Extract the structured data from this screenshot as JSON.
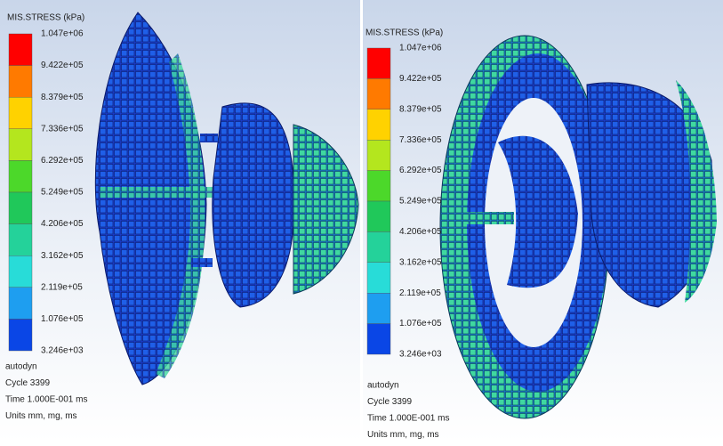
{
  "panels": [
    {
      "legend": {
        "title": "MIS.STRESS (kPa)",
        "labels": [
          "1.047e+06",
          "9.422e+05",
          "8.379e+05",
          "7.336e+05",
          "6.292e+05",
          "5.249e+05",
          "4.206e+05",
          "3.162e+05",
          "2.119e+05",
          "1.076e+05",
          "3.246e+03"
        ]
      },
      "footer": [
        "autodyn",
        "Cycle 3399",
        "Time 1.000E-001 ms",
        "Units mm, mg, ms"
      ]
    },
    {
      "legend": {
        "title": "MIS.STRESS (kPa)",
        "labels": [
          "1.047e+06",
          "9.422e+05",
          "8.379e+05",
          "7.336e+05",
          "6.292e+05",
          "5.249e+05",
          "4.206e+05",
          "3.162e+05",
          "2.119e+05",
          "1.076e+05",
          "3.246e+03"
        ]
      },
      "footer": [
        "autodyn",
        "Cycle 3399",
        "Time 1.000E-001 ms",
        "Units mm, mg, ms"
      ]
    }
  ]
}
